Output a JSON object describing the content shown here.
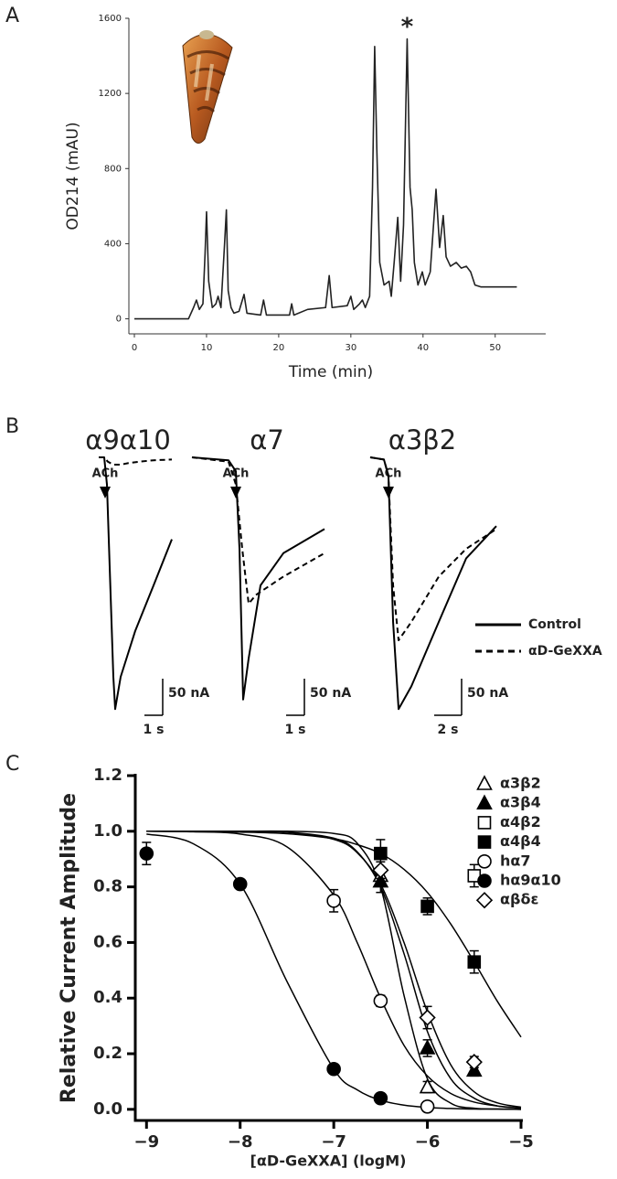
{
  "chart_data": [
    {
      "type": "line",
      "panel": "A",
      "xlabel": "Time  (min)",
      "ylabel": "OD214  (mAU)",
      "annotation": {
        "text": "*",
        "x": 37.8
      },
      "xlim": [
        0,
        57
      ],
      "ylim": [
        -80,
        1600
      ],
      "xticks": [
        0,
        10,
        20,
        30,
        40,
        50
      ],
      "yticks": [
        0,
        400,
        800,
        1200,
        1600
      ],
      "x": [
        0,
        7.5,
        8.2,
        8.6,
        9.0,
        9.5,
        9.8,
        10.0,
        10.3,
        10.8,
        11.3,
        11.6,
        12.0,
        12.5,
        12.75,
        13.0,
        13.4,
        13.8,
        14.5,
        15.2,
        15.6,
        17.5,
        17.9,
        18.3,
        21.5,
        21.8,
        22.1,
        24,
        26.5,
        27.0,
        27.4,
        29.5,
        30.0,
        30.4,
        31.2,
        31.6,
        32.0,
        32.6,
        33.0,
        33.3,
        33.6,
        34.0,
        34.6,
        35.3,
        35.6,
        36.0,
        36.5,
        36.9,
        37.3,
        37.8,
        38.2,
        38.5,
        38.8,
        39.3,
        39.9,
        40.3,
        41.0,
        41.8,
        42.3,
        42.8,
        43.2,
        43.8,
        44.6,
        45.3,
        46.0,
        46.6,
        47.2,
        48.0,
        53.0
      ],
      "series": [
        {
          "color": "#222222",
          "values": [
            0,
            0,
            60,
            100,
            50,
            80,
            350,
            570,
            200,
            60,
            80,
            120,
            60,
            400,
            580,
            150,
            60,
            30,
            40,
            130,
            30,
            20,
            100,
            20,
            20,
            80,
            20,
            50,
            60,
            230,
            60,
            70,
            120,
            50,
            80,
            100,
            60,
            120,
            700,
            1450,
            900,
            300,
            180,
            200,
            120,
            300,
            540,
            200,
            500,
            1490,
            700,
            580,
            300,
            180,
            250,
            180,
            250,
            690,
            380,
            550,
            330,
            280,
            300,
            270,
            280,
            250,
            180,
            170,
            170
          ]
        }
      ]
    },
    {
      "type": "trace",
      "panel": "B",
      "title": "α9α10",
      "annotation": {
        "text": "ACh",
        "x": 0.35
      },
      "scalebar": {
        "y": {
          "value": 50,
          "label": "50 nA"
        },
        "x": {
          "value": 1,
          "label": "1 s"
        }
      },
      "series": [
        {
          "style": "solid",
          "x": [
            0,
            0.3,
            0.45,
            0.6,
            0.8,
            0.9,
            1.2,
            2,
            3,
            4
          ],
          "values": [
            0,
            0,
            -37,
            -150,
            -300,
            -344,
            -300,
            -237,
            -175,
            -112
          ]
        },
        {
          "style": "dashed",
          "x": [
            0,
            0.3,
            0.5,
            0.8,
            1.2,
            1.6,
            2.2,
            3,
            4
          ],
          "values": [
            0,
            0,
            -6,
            -10,
            -10,
            -8,
            -6,
            -4,
            -3
          ]
        }
      ]
    },
    {
      "type": "trace",
      "title": "α7",
      "annotation": {
        "text": "ACh",
        "x": 2.4
      },
      "scalebar": {
        "y": {
          "value": 50,
          "label": "50 nA"
        },
        "x": {
          "value": 1,
          "label": "1 s"
        }
      },
      "series": [
        {
          "style": "solid",
          "x": [
            0,
            2,
            2.4,
            2.6,
            2.8,
            3.1,
            3.75,
            5,
            7.25
          ],
          "values": [
            0,
            -4,
            -19,
            -125,
            -331,
            -275,
            -175,
            -131,
            -98
          ]
        },
        {
          "style": "dashed",
          "x": [
            0,
            2,
            2.4,
            2.75,
            3.1,
            3.5,
            5,
            7.25
          ],
          "values": [
            0,
            -6,
            -37,
            -125,
            -200,
            -188,
            -163,
            -131
          ]
        }
      ]
    },
    {
      "type": "trace",
      "title": "α3β2",
      "annotation": {
        "text": "ACh",
        "x": 1.33
      },
      "scalebar": {
        "y": {
          "value": 50,
          "label": "50 nA"
        },
        "x": {
          "value": 2,
          "label": "2 s"
        }
      },
      "series": [
        {
          "name": "Control",
          "style": "solid",
          "x": [
            0,
            1,
            1.33,
            1.67,
            2.07,
            3,
            5,
            7,
            9.2
          ],
          "values": [
            0,
            -3,
            -25,
            -225,
            -344,
            -313,
            -225,
            -138,
            -94
          ]
        },
        {
          "name": "αD-GeXXA",
          "style": "dashed",
          "x": [
            0,
            1,
            1.33,
            1.67,
            2.07,
            3,
            5,
            7,
            9.2
          ],
          "values": [
            0,
            -3,
            -25,
            -175,
            -250,
            -225,
            -163,
            -125,
            -98
          ]
        }
      ]
    },
    {
      "type": "scatter",
      "panel": "C",
      "xlabel": "[αD-GeXXA] (logM)",
      "ylabel": "Relative Current Amplitude",
      "xlim": [
        -9.12,
        -5
      ],
      "ylim": [
        -0.04,
        1.2
      ],
      "xticks": [
        {
          "value": -9,
          "label": "−9"
        },
        {
          "value": -8,
          "label": "−8"
        },
        {
          "value": -7,
          "label": "−7"
        },
        {
          "value": -6,
          "label": "−6"
        },
        {
          "value": -5,
          "label": "−5"
        }
      ],
      "yticks": [
        {
          "value": 0,
          "label": "0.0"
        },
        0.2,
        0.4,
        0.6,
        0.8,
        {
          "value": 1,
          "label": "1.0"
        },
        1.2
      ],
      "fit_x": [
        -9,
        -8.5,
        -8,
        -7.5,
        -7,
        -6.75,
        -6.5,
        -6.25,
        -6,
        -5.75,
        -5.5,
        -5.25,
        -5
      ],
      "series": [
        {
          "name": "α3β2",
          "marker": "triangle",
          "filled": false,
          "x": [
            -6.5,
            -6
          ],
          "values": [
            0.84,
            0.08
          ],
          "errors": [
            0.03,
            0.02
          ],
          "fit": [
            1,
            1,
            1,
            1,
            0.992,
            0.957,
            0.8,
            0.41,
            0.11,
            0.022,
            0.004,
            0.001,
            0
          ]
        },
        {
          "name": "α3β4",
          "marker": "triangle",
          "filled": true,
          "x": [
            -6.5,
            -6,
            -5.5
          ],
          "values": [
            0.82,
            0.22,
            0.14
          ],
          "errors": [
            0.04,
            0.03,
            0.02
          ],
          "fit": [
            1,
            1,
            1,
            0.997,
            0.975,
            0.926,
            0.8,
            0.56,
            0.28,
            0.11,
            0.04,
            0.012,
            0.004
          ]
        },
        {
          "name": "α4β2",
          "marker": "square",
          "filled": false,
          "x": [
            -5.5
          ],
          "values": [
            0.84
          ],
          "errors": [
            0.04
          ]
        },
        {
          "name": "α4β4",
          "marker": "square",
          "filled": true,
          "x": [
            -6.5,
            -6,
            -5.5
          ],
          "values": [
            0.92,
            0.73,
            0.53
          ],
          "errors": [
            0.05,
            0.03,
            0.04
          ],
          "fit": [
            1,
            0.999,
            0.997,
            0.991,
            0.973,
            0.952,
            0.92,
            0.863,
            0.78,
            0.666,
            0.53,
            0.387,
            0.26
          ]
        },
        {
          "name": "hα7",
          "marker": "circle",
          "filled": false,
          "x": [
            -7,
            -6.5,
            -6
          ],
          "values": [
            0.75,
            0.39,
            0.01
          ],
          "errors": [
            0.04,
            0.02,
            0.01
          ],
          "fit": [
            1,
            0.998,
            0.99,
            0.944,
            0.77,
            0.6,
            0.4,
            0.23,
            0.12,
            0.057,
            0.026,
            0.012,
            0.005
          ]
        },
        {
          "name": "hα9α10",
          "marker": "circle",
          "filled": true,
          "x": [
            -9,
            -8,
            -7,
            -6.5
          ],
          "values": [
            0.92,
            0.81,
            0.145,
            0.04
          ],
          "errors": [
            0.04,
            0.01,
            0.01,
            0.01
          ],
          "fit": [
            0.99,
            0.955,
            0.81,
            0.46,
            0.145,
            0.07,
            0.033,
            0.015,
            0.007,
            0.003,
            0.001,
            0.001,
            0
          ]
        },
        {
          "name": "αβδε",
          "marker": "diamond",
          "filled": false,
          "x": [
            -6.5,
            -6,
            -5.5
          ],
          "values": [
            0.86,
            0.33,
            0.17
          ],
          "errors": [
            0.03,
            0.04,
            0.02
          ],
          "fit": [
            1,
            1,
            1,
            0.996,
            0.971,
            0.923,
            0.81,
            0.6,
            0.35,
            0.16,
            0.063,
            0.023,
            0.008
          ]
        }
      ]
    }
  ]
}
